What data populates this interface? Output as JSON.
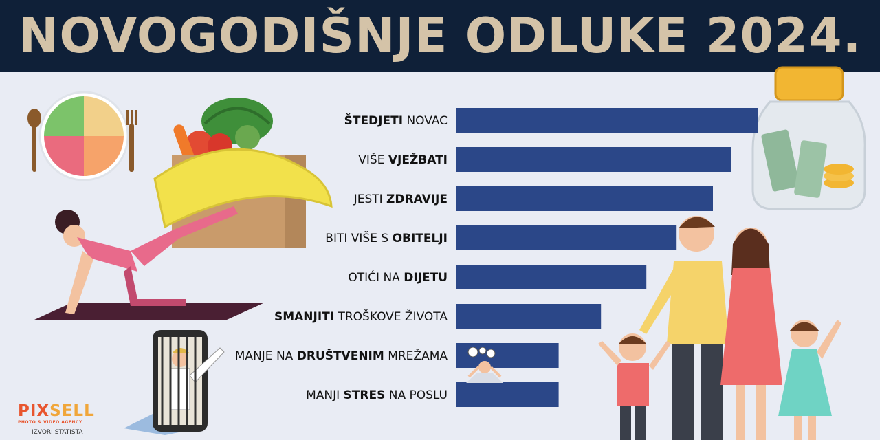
{
  "header": {
    "title": "NOVOGODIŠNJE ODLUKE 2024."
  },
  "chart_data": {
    "type": "bar",
    "orientation": "horizontal",
    "title": "NOVOGODIŠNJE ODLUKE 2024.",
    "categories": [
      "ŠTEDJETI NOVAC",
      "VIŠE VJEŽBATI",
      "JESTI ZDRAVIJE",
      "BITI VIŠE S OBITELJI",
      "OTIĆI NA DIJETU",
      "SMANJITI TROŠKOVE ŽIVOTA",
      "MANJE NA DRUŠTVENIM MREŽAMA",
      "MANJI STRES NA POSLU"
    ],
    "label_parts": [
      [
        {
          "t": "ŠTEDJETI",
          "b": true
        },
        {
          "t": " NOVAC",
          "b": false
        }
      ],
      [
        {
          "t": "VIŠE ",
          "b": false
        },
        {
          "t": "VJEŽBATI",
          "b": true
        }
      ],
      [
        {
          "t": "JESTI ",
          "b": false
        },
        {
          "t": "ZDRAVIJE",
          "b": true
        }
      ],
      [
        {
          "t": "BITI VIŠE S ",
          "b": false
        },
        {
          "t": "OBITELJI",
          "b": true
        }
      ],
      [
        {
          "t": "OTIĆI NA ",
          "b": false
        },
        {
          "t": "DIJETU",
          "b": true
        }
      ],
      [
        {
          "t": "SMANJITI",
          "b": true
        },
        {
          "t": " TROŠKOVE ŽIVOTA",
          "b": false
        }
      ],
      [
        {
          "t": "MANJE NA ",
          "b": false
        },
        {
          "t": "DRUŠTVENIM",
          "b": true
        },
        {
          "t": " MREŽAMA",
          "b": false
        }
      ],
      [
        {
          "t": "MANJI ",
          "b": false
        },
        {
          "t": "STRES",
          "b": true
        },
        {
          "t": " NA POSLU",
          "b": false
        }
      ]
    ],
    "values": [
      100,
      91,
      85,
      73,
      63,
      48,
      34,
      34
    ],
    "xlim": [
      0,
      100
    ],
    "bar_color": "#2b4788",
    "grid": false,
    "legend": "none"
  },
  "logo": {
    "brand_a": "PIX",
    "brand_b": "SELL",
    "tagline": "PHOTO & VIDEO AGENCY",
    "color_a": "#e8552e",
    "color_b": "#f0a63a"
  },
  "source": "IZVOR: STATISTA"
}
